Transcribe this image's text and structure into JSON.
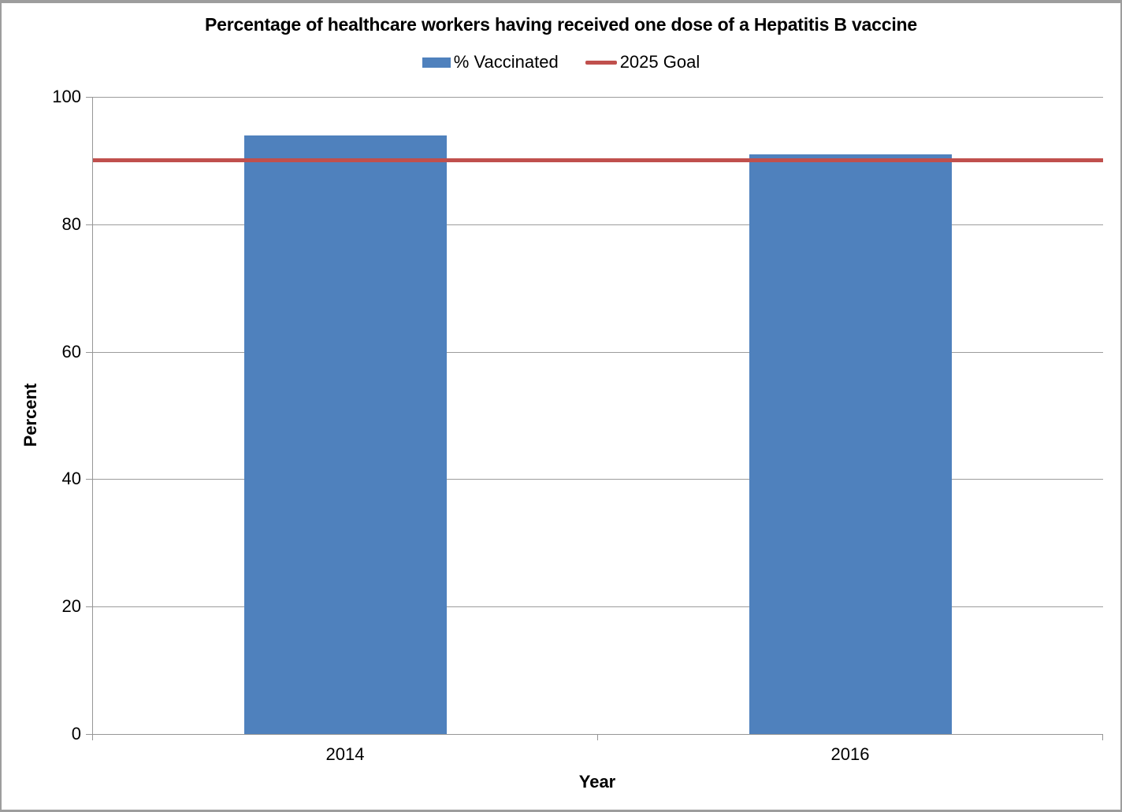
{
  "window": {
    "background": "#FFFFFF",
    "border_color": "#9D9D9D"
  },
  "chart_data": {
    "type": "bar",
    "title": "Percentage of healthcare workers having received one dose of a Hepatitis B vaccine",
    "xlabel": "Year",
    "ylabel": "Percent",
    "categories": [
      "2014",
      "2016"
    ],
    "series": [
      {
        "name": "% Vaccinated",
        "type": "bar",
        "values": [
          94,
          91
        ],
        "color": "#4F81BD"
      },
      {
        "name": "2025 Goal",
        "type": "line",
        "values": [
          90,
          90
        ],
        "color": "#C0504D"
      }
    ],
    "goal_value": 90,
    "ylim": [
      0,
      100
    ],
    "yticks": [
      0,
      20,
      40,
      60,
      80,
      100
    ],
    "grid": true,
    "gridline_color": "#9C9C9C",
    "axis_color": "#969696",
    "text_color": "#000000",
    "legend_position": "top-center"
  }
}
